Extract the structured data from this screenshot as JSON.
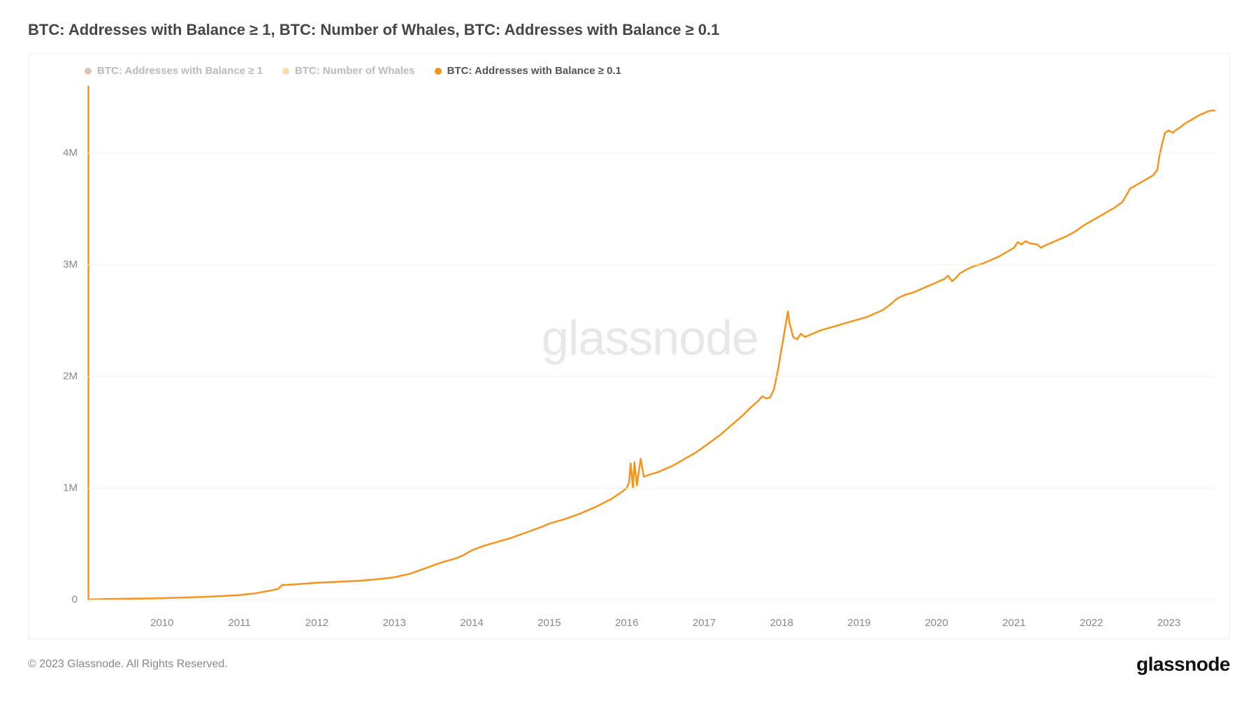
{
  "title": "BTC: Addresses with Balance ≥ 1, BTC: Number of Whales, BTC: Addresses with Balance ≥ 0.1",
  "legend": [
    {
      "label": "BTC: Addresses with Balance ≥ 1",
      "color": "#8b5a2b",
      "dim": true
    },
    {
      "label": "BTC: Number of Whales",
      "color": "#f7931a",
      "dim": true
    },
    {
      "label": "BTC: Addresses with Balance ≥ 0.1",
      "color": "#f7931a",
      "dim": false
    }
  ],
  "watermark": "glassnode",
  "copyright": "© 2023 Glassnode. All Rights Reserved.",
  "brand": "glassnode",
  "chart": {
    "type": "line",
    "line_color": "#f7931a",
    "line_width": 2.5,
    "background": "#ffffff",
    "grid_color": "#f0f0f0",
    "axis_text_color": "#888888",
    "font_size_axis": 15,
    "xlim": [
      2009.0,
      2023.6
    ],
    "ylim": [
      -100000,
      4600000
    ],
    "yticks": [
      {
        "v": 0,
        "label": "0"
      },
      {
        "v": 1000000,
        "label": "1M"
      },
      {
        "v": 2000000,
        "label": "2M"
      },
      {
        "v": 3000000,
        "label": "3M"
      },
      {
        "v": 4000000,
        "label": "4M"
      }
    ],
    "xticks": [
      {
        "v": 2010,
        "label": "2010"
      },
      {
        "v": 2011,
        "label": "2011"
      },
      {
        "v": 2012,
        "label": "2012"
      },
      {
        "v": 2013,
        "label": "2013"
      },
      {
        "v": 2014,
        "label": "2014"
      },
      {
        "v": 2015,
        "label": "2015"
      },
      {
        "v": 2016,
        "label": "2016"
      },
      {
        "v": 2017,
        "label": "2017"
      },
      {
        "v": 2018,
        "label": "2018"
      },
      {
        "v": 2019,
        "label": "2019"
      },
      {
        "v": 2020,
        "label": "2020"
      },
      {
        "v": 2021,
        "label": "2021"
      },
      {
        "v": 2022,
        "label": "2022"
      },
      {
        "v": 2023,
        "label": "2023"
      }
    ],
    "series": [
      {
        "name": "addresses_balance_gte_0_1",
        "spike_start": {
          "x": 2009.05,
          "y0": 0,
          "y1": 4600000
        },
        "points": [
          [
            2009.05,
            0
          ],
          [
            2009.3,
            5000
          ],
          [
            2009.6,
            8000
          ],
          [
            2010.0,
            12000
          ],
          [
            2010.3,
            18000
          ],
          [
            2010.6,
            25000
          ],
          [
            2011.0,
            40000
          ],
          [
            2011.2,
            55000
          ],
          [
            2011.4,
            80000
          ],
          [
            2011.5,
            95000
          ],
          [
            2011.55,
            130000
          ],
          [
            2011.7,
            135000
          ],
          [
            2012.0,
            150000
          ],
          [
            2012.3,
            160000
          ],
          [
            2012.6,
            170000
          ],
          [
            2012.9,
            190000
          ],
          [
            2013.0,
            200000
          ],
          [
            2013.2,
            230000
          ],
          [
            2013.4,
            280000
          ],
          [
            2013.6,
            330000
          ],
          [
            2013.8,
            370000
          ],
          [
            2013.9,
            400000
          ],
          [
            2014.0,
            440000
          ],
          [
            2014.15,
            480000
          ],
          [
            2014.3,
            510000
          ],
          [
            2014.5,
            550000
          ],
          [
            2014.7,
            600000
          ],
          [
            2014.9,
            650000
          ],
          [
            2015.0,
            680000
          ],
          [
            2015.2,
            720000
          ],
          [
            2015.4,
            770000
          ],
          [
            2015.6,
            830000
          ],
          [
            2015.8,
            900000
          ],
          [
            2015.95,
            970000
          ],
          [
            2016.0,
            1000000
          ],
          [
            2016.03,
            1050000
          ],
          [
            2016.05,
            1220000
          ],
          [
            2016.08,
            1000000
          ],
          [
            2016.1,
            1230000
          ],
          [
            2016.13,
            1020000
          ],
          [
            2016.18,
            1260000
          ],
          [
            2016.22,
            1100000
          ],
          [
            2016.3,
            1120000
          ],
          [
            2016.4,
            1140000
          ],
          [
            2016.5,
            1170000
          ],
          [
            2016.6,
            1200000
          ],
          [
            2016.7,
            1240000
          ],
          [
            2016.8,
            1280000
          ],
          [
            2016.9,
            1320000
          ],
          [
            2017.0,
            1370000
          ],
          [
            2017.1,
            1420000
          ],
          [
            2017.2,
            1470000
          ],
          [
            2017.3,
            1530000
          ],
          [
            2017.4,
            1590000
          ],
          [
            2017.5,
            1650000
          ],
          [
            2017.6,
            1720000
          ],
          [
            2017.7,
            1780000
          ],
          [
            2017.75,
            1820000
          ],
          [
            2017.8,
            1800000
          ],
          [
            2017.85,
            1810000
          ],
          [
            2017.9,
            1880000
          ],
          [
            2017.95,
            2050000
          ],
          [
            2018.0,
            2250000
          ],
          [
            2018.05,
            2450000
          ],
          [
            2018.08,
            2580000
          ],
          [
            2018.1,
            2480000
          ],
          [
            2018.15,
            2350000
          ],
          [
            2018.2,
            2330000
          ],
          [
            2018.25,
            2380000
          ],
          [
            2018.3,
            2350000
          ],
          [
            2018.4,
            2380000
          ],
          [
            2018.5,
            2410000
          ],
          [
            2018.6,
            2430000
          ],
          [
            2018.7,
            2450000
          ],
          [
            2018.8,
            2470000
          ],
          [
            2018.9,
            2490000
          ],
          [
            2019.0,
            2510000
          ],
          [
            2019.1,
            2530000
          ],
          [
            2019.2,
            2560000
          ],
          [
            2019.3,
            2590000
          ],
          [
            2019.4,
            2640000
          ],
          [
            2019.5,
            2700000
          ],
          [
            2019.6,
            2730000
          ],
          [
            2019.7,
            2750000
          ],
          [
            2019.8,
            2780000
          ],
          [
            2019.9,
            2810000
          ],
          [
            2020.0,
            2840000
          ],
          [
            2020.1,
            2870000
          ],
          [
            2020.15,
            2900000
          ],
          [
            2020.2,
            2850000
          ],
          [
            2020.25,
            2880000
          ],
          [
            2020.3,
            2920000
          ],
          [
            2020.4,
            2960000
          ],
          [
            2020.5,
            2990000
          ],
          [
            2020.6,
            3010000
          ],
          [
            2020.7,
            3040000
          ],
          [
            2020.8,
            3070000
          ],
          [
            2020.9,
            3110000
          ],
          [
            2021.0,
            3150000
          ],
          [
            2021.05,
            3200000
          ],
          [
            2021.1,
            3180000
          ],
          [
            2021.15,
            3210000
          ],
          [
            2021.2,
            3190000
          ],
          [
            2021.3,
            3180000
          ],
          [
            2021.35,
            3150000
          ],
          [
            2021.4,
            3170000
          ],
          [
            2021.5,
            3200000
          ],
          [
            2021.6,
            3230000
          ],
          [
            2021.7,
            3260000
          ],
          [
            2021.8,
            3300000
          ],
          [
            2021.9,
            3350000
          ],
          [
            2022.0,
            3390000
          ],
          [
            2022.1,
            3430000
          ],
          [
            2022.2,
            3470000
          ],
          [
            2022.3,
            3510000
          ],
          [
            2022.4,
            3560000
          ],
          [
            2022.45,
            3620000
          ],
          [
            2022.5,
            3680000
          ],
          [
            2022.6,
            3720000
          ],
          [
            2022.7,
            3760000
          ],
          [
            2022.8,
            3800000
          ],
          [
            2022.85,
            3850000
          ],
          [
            2022.88,
            3980000
          ],
          [
            2022.92,
            4100000
          ],
          [
            2022.95,
            4180000
          ],
          [
            2023.0,
            4200000
          ],
          [
            2023.05,
            4180000
          ],
          [
            2023.1,
            4210000
          ],
          [
            2023.15,
            4230000
          ],
          [
            2023.2,
            4260000
          ],
          [
            2023.3,
            4300000
          ],
          [
            2023.4,
            4340000
          ],
          [
            2023.5,
            4370000
          ],
          [
            2023.55,
            4380000
          ],
          [
            2023.6,
            4380000
          ]
        ]
      }
    ]
  }
}
